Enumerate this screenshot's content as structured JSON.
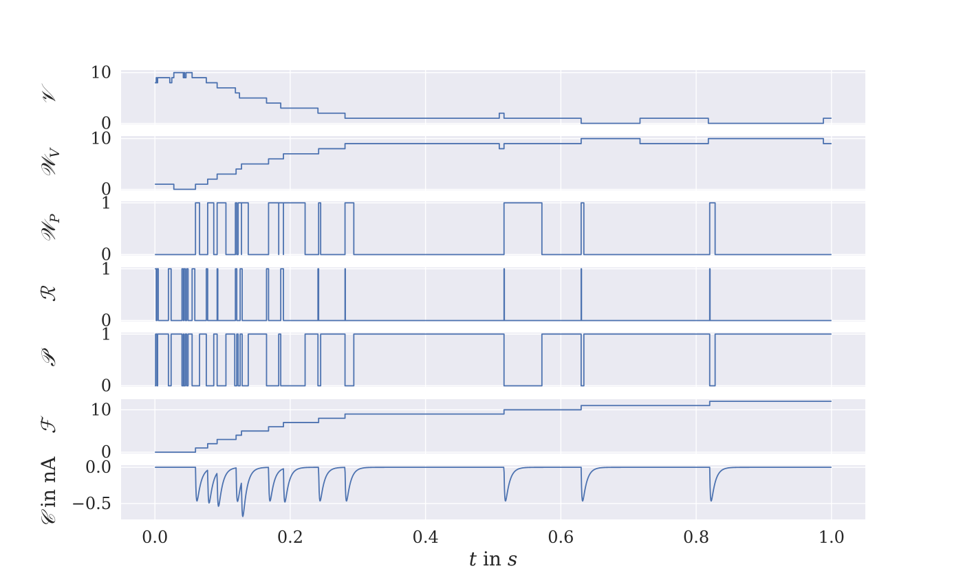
{
  "style": {
    "panel_bg": "#EAEAF2",
    "grid": "#FFFFFF",
    "line": "#4C72B0",
    "text": "#262626"
  },
  "chart_data": {
    "type": "line",
    "shared_x": true,
    "grid": true,
    "xlim": [
      -0.05,
      1.05
    ],
    "xticks": [
      0.0,
      0.2,
      0.4,
      0.6,
      0.8,
      1.0
    ],
    "xtick_labels": [
      "0.0",
      "0.2",
      "0.4",
      "0.6",
      "0.8",
      "1.0"
    ],
    "xlabel": {
      "var": "t",
      "mid": " in ",
      "unit": "s"
    },
    "panels": [
      {
        "name": "V",
        "ylabel": "𝒱",
        "sub": "",
        "unit": "",
        "ylim": [
          -0.2,
          10.5
        ],
        "yticks": [
          0,
          10
        ],
        "ytick_labels": [
          "0",
          "10"
        ],
        "mode": "step",
        "points": [
          [
            0,
            8
          ],
          [
            0.002,
            9
          ],
          [
            0.003,
            8
          ],
          [
            0.004,
            9
          ],
          [
            0.02,
            9
          ],
          [
            0.022,
            8
          ],
          [
            0.024,
            8
          ],
          [
            0.025,
            9
          ],
          [
            0.028,
            10
          ],
          [
            0.041,
            10
          ],
          [
            0.042,
            9
          ],
          [
            0.043,
            10
          ],
          [
            0.044,
            9
          ],
          [
            0.046,
            10
          ],
          [
            0.055,
            9
          ],
          [
            0.076,
            8
          ],
          [
            0.092,
            7
          ],
          [
            0.119,
            6
          ],
          [
            0.125,
            5
          ],
          [
            0.165,
            4
          ],
          [
            0.186,
            3
          ],
          [
            0.241,
            2
          ],
          [
            0.281,
            1
          ],
          [
            0.509,
            2
          ],
          [
            0.516,
            1
          ],
          [
            0.63,
            0
          ],
          [
            0.717,
            1
          ],
          [
            0.818,
            0
          ],
          [
            0.988,
            1
          ],
          [
            1.0,
            1
          ]
        ]
      },
      {
        "name": "W_V",
        "ylabel": "𝒲",
        "sub": "V",
        "unit": "",
        "ylim": [
          -0.2,
          10.5
        ],
        "yticks": [
          0,
          10
        ],
        "ytick_labels": [
          "0",
          "10"
        ],
        "mode": "step",
        "points": [
          [
            0,
            1
          ],
          [
            0.028,
            0
          ],
          [
            0.06,
            1
          ],
          [
            0.078,
            2
          ],
          [
            0.092,
            3
          ],
          [
            0.12,
            4
          ],
          [
            0.128,
            5
          ],
          [
            0.168,
            6
          ],
          [
            0.19,
            7
          ],
          [
            0.242,
            8
          ],
          [
            0.281,
            9
          ],
          [
            0.509,
            8
          ],
          [
            0.516,
            9
          ],
          [
            0.63,
            10
          ],
          [
            0.717,
            9
          ],
          [
            0.818,
            10
          ],
          [
            0.988,
            9
          ],
          [
            1.0,
            9
          ]
        ]
      },
      {
        "name": "W_P",
        "ylabel": "𝒲",
        "sub": "P",
        "unit": "",
        "ylim": [
          -0.02,
          1.03
        ],
        "yticks": [
          0,
          1
        ],
        "ytick_labels": [
          "0",
          "1"
        ],
        "mode": "step",
        "points": [
          [
            0,
            0
          ],
          [
            0.06,
            1
          ],
          [
            0.066,
            0
          ],
          [
            0.078,
            1
          ],
          [
            0.087,
            0
          ],
          [
            0.092,
            1
          ],
          [
            0.105,
            0
          ],
          [
            0.119,
            1
          ],
          [
            0.121,
            0
          ],
          [
            0.123,
            1
          ],
          [
            0.128,
            0
          ],
          [
            0.128,
            1
          ],
          [
            0.138,
            0
          ],
          [
            0.168,
            1
          ],
          [
            0.183,
            0
          ],
          [
            0.183,
            1
          ],
          [
            0.19,
            0
          ],
          [
            0.19,
            1
          ],
          [
            0.222,
            0
          ],
          [
            0.242,
            1
          ],
          [
            0.245,
            0
          ],
          [
            0.281,
            1
          ],
          [
            0.294,
            0
          ],
          [
            0.516,
            1
          ],
          [
            0.572,
            0
          ],
          [
            0.63,
            1
          ],
          [
            0.634,
            0
          ],
          [
            0.82,
            1
          ],
          [
            0.828,
            0
          ],
          [
            1.0,
            0
          ]
        ]
      },
      {
        "name": "R",
        "ylabel": "ℛ",
        "sub": "",
        "unit": "",
        "ylim": [
          -0.02,
          1.03
        ],
        "yticks": [
          0,
          1
        ],
        "ytick_labels": [
          "0",
          "1"
        ],
        "mode": "step",
        "points": [
          [
            0,
            1
          ],
          [
            0.002,
            0
          ],
          [
            0.003,
            1
          ],
          [
            0.005,
            0
          ],
          [
            0.02,
            1
          ],
          [
            0.024,
            0
          ],
          [
            0.04,
            1
          ],
          [
            0.042,
            0
          ],
          [
            0.043,
            1
          ],
          [
            0.045,
            0
          ],
          [
            0.047,
            1
          ],
          [
            0.049,
            0
          ],
          [
            0.055,
            1
          ],
          [
            0.059,
            0
          ],
          [
            0.076,
            1
          ],
          [
            0.078,
            0
          ],
          [
            0.092,
            1
          ],
          [
            0.093,
            0
          ],
          [
            0.119,
            1
          ],
          [
            0.121,
            0
          ],
          [
            0.126,
            1
          ],
          [
            0.129,
            0
          ],
          [
            0.165,
            1
          ],
          [
            0.168,
            0
          ],
          [
            0.186,
            1
          ],
          [
            0.19,
            0
          ],
          [
            0.241,
            1
          ],
          [
            0.242,
            0
          ],
          [
            0.281,
            1
          ],
          [
            0.2815,
            0
          ],
          [
            0.516,
            1
          ],
          [
            0.5165,
            0
          ],
          [
            0.63,
            1
          ],
          [
            0.6305,
            0
          ],
          [
            0.82,
            1
          ],
          [
            0.8205,
            0
          ],
          [
            1.0,
            0
          ]
        ]
      },
      {
        "name": "P",
        "ylabel": "𝒫",
        "sub": "",
        "unit": "",
        "ylim": [
          -0.02,
          1.03
        ],
        "yticks": [
          0,
          1
        ],
        "ytick_labels": [
          "0",
          "1"
        ],
        "mode": "step",
        "points": [
          [
            0,
            0
          ],
          [
            0.001,
            1
          ],
          [
            0.003,
            0
          ],
          [
            0.004,
            1
          ],
          [
            0.02,
            0
          ],
          [
            0.024,
            1
          ],
          [
            0.04,
            0
          ],
          [
            0.042,
            1
          ],
          [
            0.043,
            0
          ],
          [
            0.045,
            1
          ],
          [
            0.047,
            0
          ],
          [
            0.049,
            1
          ],
          [
            0.055,
            0
          ],
          [
            0.066,
            1
          ],
          [
            0.076,
            0
          ],
          [
            0.087,
            1
          ],
          [
            0.092,
            0
          ],
          [
            0.105,
            1
          ],
          [
            0.118,
            0
          ],
          [
            0.121,
            1
          ],
          [
            0.123,
            0
          ],
          [
            0.126,
            1
          ],
          [
            0.129,
            0
          ],
          [
            0.138,
            1
          ],
          [
            0.165,
            0
          ],
          [
            0.183,
            1
          ],
          [
            0.186,
            0
          ],
          [
            0.222,
            1
          ],
          [
            0.241,
            0
          ],
          [
            0.245,
            1
          ],
          [
            0.281,
            0
          ],
          [
            0.294,
            1
          ],
          [
            0.516,
            0
          ],
          [
            0.572,
            1
          ],
          [
            0.63,
            0
          ],
          [
            0.634,
            1
          ],
          [
            0.82,
            0
          ],
          [
            0.828,
            1
          ],
          [
            1.0,
            1
          ]
        ]
      },
      {
        "name": "F",
        "ylabel": "ℱ",
        "sub": "",
        "unit": "",
        "ylim": [
          -0.3,
          12.5
        ],
        "yticks": [
          0,
          10
        ],
        "ytick_labels": [
          "0",
          "10"
        ],
        "mode": "step",
        "points": [
          [
            0,
            0
          ],
          [
            0.06,
            1
          ],
          [
            0.078,
            2
          ],
          [
            0.092,
            3
          ],
          [
            0.12,
            4
          ],
          [
            0.128,
            5
          ],
          [
            0.168,
            6
          ],
          [
            0.19,
            7
          ],
          [
            0.242,
            8
          ],
          [
            0.281,
            9
          ],
          [
            0.516,
            10
          ],
          [
            0.63,
            11
          ],
          [
            0.82,
            12
          ],
          [
            1.0,
            12
          ]
        ]
      },
      {
        "name": "C",
        "ylabel": "𝒞",
        "sub": "",
        "unit": " in nA",
        "ylim": [
          -0.72,
          0.03
        ],
        "yticks": [
          0.0,
          -0.5
        ],
        "ytick_labels": [
          "0.0",
          "−0.5"
        ],
        "mode": "spikes",
        "baseline": 0.0,
        "spike_times": [
          0.06,
          0.078,
          0.092,
          0.12,
          0.128,
          0.168,
          0.19,
          0.242,
          0.281,
          0.516,
          0.63,
          0.82
        ],
        "spike_depths": [
          -0.6,
          -0.6,
          -0.62,
          -0.6,
          -0.68,
          -0.6,
          -0.6,
          -0.6,
          -0.6,
          -0.6,
          -0.6,
          -0.6
        ],
        "x_end": 1.0
      }
    ]
  }
}
